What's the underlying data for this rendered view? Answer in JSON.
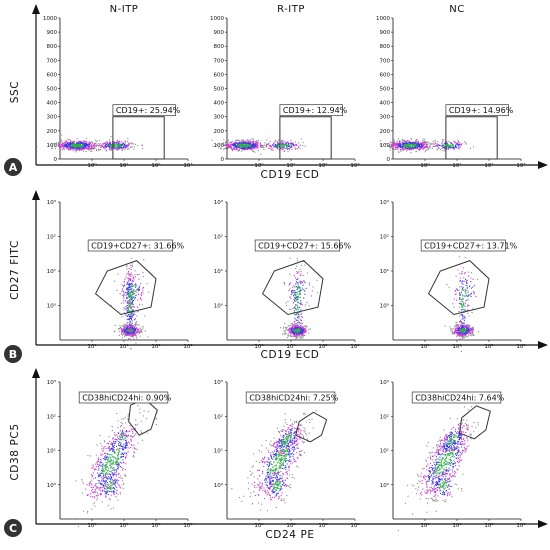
{
  "figure": {
    "colors": {
      "axis": "#111111",
      "badge": "#333333",
      "gate": "#333333",
      "dens_low": "#8a8a8a",
      "dens_mid1": "#d23bd2",
      "dens_mid2": "#3a3adf",
      "dens_high": "#2fae4a"
    }
  },
  "chart_data": [
    {
      "id": "A",
      "type": "scatter",
      "badge": "A",
      "ylabel": "SSC",
      "xlabel": "CD19 ECD",
      "x_scale": "log",
      "xlim": [
        0.1,
        1000
      ],
      "xticks": [
        {
          "v": 1,
          "t": "10⁰"
        },
        {
          "v": 10,
          "t": "10¹"
        },
        {
          "v": 100,
          "t": "10²"
        },
        {
          "v": 1000,
          "t": "10³"
        }
      ],
      "ylim": [
        0,
        1000
      ],
      "yticks": [
        "0",
        "100",
        "200",
        "300",
        "400",
        "500",
        "600",
        "700",
        "800",
        "900",
        "1000"
      ],
      "y_tick_values": [
        0,
        100,
        200,
        300,
        400,
        500,
        600,
        700,
        800,
        900,
        1000
      ],
      "panels": [
        {
          "title": "N-ITP",
          "gate_label": "CD19+: 25.94%",
          "gate_percent": 25.94,
          "gate": [
            [
              4.5,
              0
            ],
            [
              180,
              0
            ],
            [
              180,
              300
            ],
            [
              4.5,
              300
            ]
          ]
        },
        {
          "title": "R-ITP",
          "gate_label": "CD19+: 12.94%",
          "gate_percent": 12.94,
          "gate": [
            [
              4.5,
              0
            ],
            [
              180,
              0
            ],
            [
              180,
              300
            ],
            [
              4.5,
              300
            ]
          ]
        },
        {
          "title": "NC",
          "gate_label": "CD19+: 14.96%",
          "gate_percent": 14.96,
          "gate": [
            [
              4.5,
              0
            ],
            [
              180,
              0
            ],
            [
              180,
              300
            ],
            [
              4.5,
              300
            ]
          ]
        }
      ]
    },
    {
      "id": "B",
      "type": "scatter",
      "badge": "B",
      "ylabel": "CD27 FITC",
      "xlabel": "CD19 ECD",
      "x_scale": "log",
      "y_scale": "log",
      "xlim": [
        0.1,
        1000
      ],
      "ylim": [
        0.1,
        1000
      ],
      "xticks": [
        {
          "v": 1,
          "t": "10⁰"
        },
        {
          "v": 10,
          "t": "10¹"
        },
        {
          "v": 100,
          "t": "10²"
        },
        {
          "v": 1000,
          "t": "10³"
        }
      ],
      "yticks": [
        {
          "v": 1,
          "t": "10⁰"
        },
        {
          "v": 10,
          "t": "10¹"
        },
        {
          "v": 100,
          "t": "10²"
        },
        {
          "v": 1000,
          "t": "10³"
        }
      ],
      "panels": [
        {
          "gate_label": "CD19+CD27+: 31.66%",
          "gate_percent": 31.66,
          "gate": [
            [
              1.3,
              2.2
            ],
            [
              8,
              0.55
            ],
            [
              70,
              0.9
            ],
            [
              100,
              6
            ],
            [
              25,
              20
            ],
            [
              3,
              10
            ]
          ]
        },
        {
          "gate_label": "CD19+CD27+: 15.66%",
          "gate_percent": 15.66,
          "gate": [
            [
              1.3,
              2.2
            ],
            [
              8,
              0.55
            ],
            [
              70,
              0.9
            ],
            [
              100,
              6
            ],
            [
              25,
              20
            ],
            [
              3,
              10
            ]
          ]
        },
        {
          "gate_label": "CD19+CD27+: 13.71%",
          "gate_percent": 13.71,
          "gate": [
            [
              1.3,
              2.2
            ],
            [
              8,
              0.55
            ],
            [
              70,
              0.9
            ],
            [
              100,
              6
            ],
            [
              25,
              20
            ],
            [
              3,
              10
            ]
          ]
        }
      ]
    },
    {
      "id": "C",
      "type": "scatter",
      "badge": "C",
      "ylabel": "CD38 PC5",
      "xlabel": "CD24 PE",
      "x_scale": "log",
      "y_scale": "log",
      "xlim": [
        0.1,
        1000
      ],
      "ylim": [
        0.1,
        1000
      ],
      "xticks": [
        {
          "v": 1,
          "t": "10⁰"
        },
        {
          "v": 10,
          "t": "10¹"
        },
        {
          "v": 100,
          "t": "10²"
        },
        {
          "v": 1000,
          "t": "10³"
        }
      ],
      "yticks": [
        {
          "v": 1,
          "t": "10⁰"
        },
        {
          "v": 10,
          "t": "10¹"
        },
        {
          "v": 100,
          "t": "10²"
        },
        {
          "v": 1000,
          "t": "10³"
        }
      ],
      "panels": [
        {
          "gate_label": "CD38hiCD24hi: 0.90%",
          "gate_percent": 0.9,
          "gate": [
            [
              14,
              70
            ],
            [
              30,
              28
            ],
            [
              70,
              42
            ],
            [
              110,
              150
            ],
            [
              45,
              320
            ],
            [
              16,
              210
            ]
          ]
        },
        {
          "gate_label": "CD38hiCD24hi: 7.25%",
          "gate_percent": 7.25,
          "gate": [
            [
              14,
              28
            ],
            [
              40,
              18
            ],
            [
              90,
              28
            ],
            [
              130,
              80
            ],
            [
              50,
              130
            ],
            [
              18,
              70
            ]
          ]
        },
        {
          "gate_label": "CD38hiCD24hi: 7.64%",
          "gate_percent": 7.64,
          "gate": [
            [
              12,
              32
            ],
            [
              35,
              22
            ],
            [
              80,
              40
            ],
            [
              110,
              140
            ],
            [
              40,
              200
            ],
            [
              14,
              90
            ]
          ]
        }
      ]
    }
  ]
}
